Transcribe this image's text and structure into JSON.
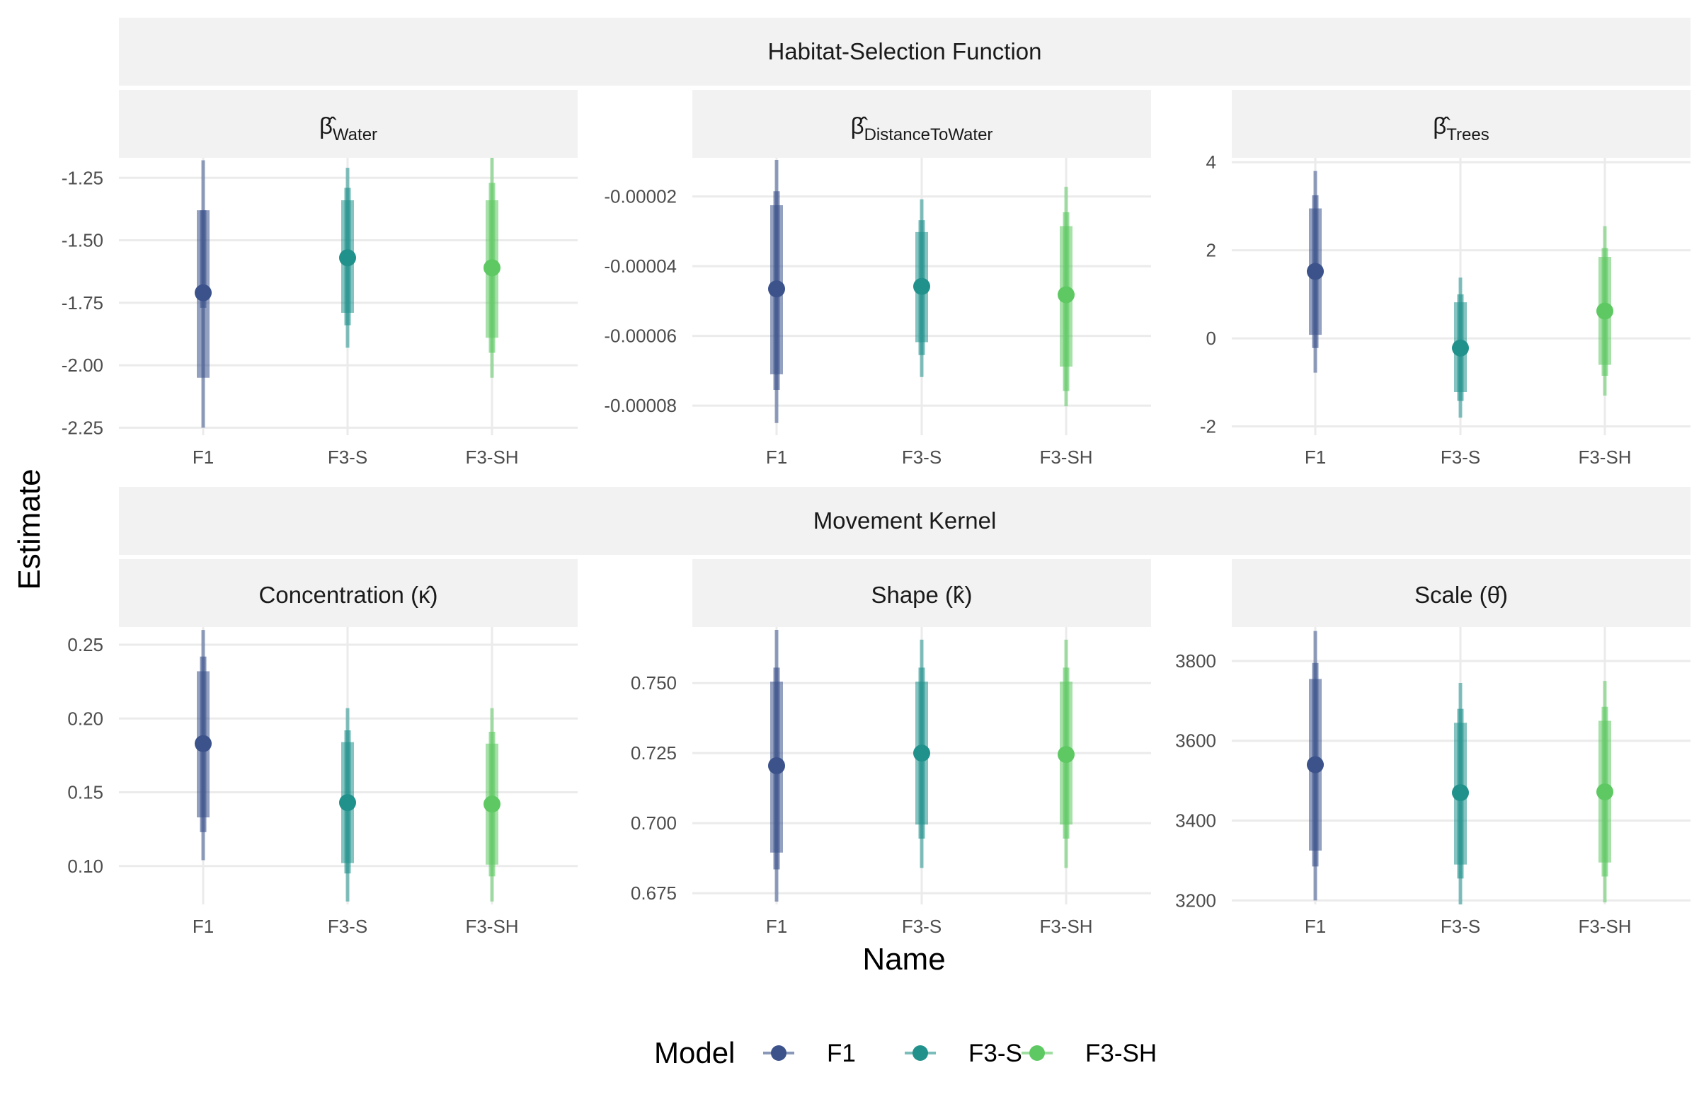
{
  "chart_data": {
    "type": "pointrange",
    "xlabel": "Name",
    "ylabel": "Estimate",
    "categories": [
      "F1",
      "F3-S",
      "F3-SH"
    ],
    "legend": {
      "title": "Model",
      "position": "bottom",
      "items": [
        {
          "name": "F1",
          "color": "#3b528b"
        },
        {
          "name": "F3-S",
          "color": "#21918c"
        },
        {
          "name": "F3-SH",
          "color": "#5ec962"
        }
      ]
    },
    "groups": [
      {
        "title": "Habitat-Selection Function",
        "panels": [
          {
            "title_base": "β̂",
            "title_sub": "Water",
            "ylim": [
              -2.28,
              -1.17
            ],
            "yticks": [
              -2.25,
              -2.0,
              -1.75,
              -1.5,
              -1.25
            ],
            "ytick_labels": [
              "-2.25",
              "-2.00",
              "-1.75",
              "-1.50",
              "-1.25"
            ],
            "series": [
              {
                "name": "F1",
                "estimate": -1.71,
                "inner": [
                  -1.77,
                  -1.38
                ],
                "mid": [
                  -2.05,
                  -1.38
                ],
                "outer": [
                  -2.25,
                  -1.18
                ]
              },
              {
                "name": "F3-S",
                "estimate": -1.57,
                "inner": [
                  -1.84,
                  -1.29
                ],
                "mid": [
                  -1.79,
                  -1.34
                ],
                "outer": [
                  -1.93,
                  -1.21
                ]
              },
              {
                "name": "F3-SH",
                "estimate": -1.61,
                "inner": [
                  -1.95,
                  -1.27
                ],
                "mid": [
                  -1.89,
                  -1.34
                ],
                "outer": [
                  -2.05,
                  -1.17
                ]
              }
            ]
          },
          {
            "title_base": "β̂",
            "title_sub": "DistanceToWater",
            "ylim": [
              -8.85e-05,
              -8.9e-06
            ],
            "yticks": [
              -8e-05,
              -6e-05,
              -4e-05,
              -2e-05
            ],
            "ytick_labels": [
              "-0.00008",
              "-0.00006",
              "-0.00004",
              "-0.00002"
            ],
            "series": [
              {
                "name": "F1",
                "estimate": -4.65e-05,
                "inner": [
                  -7.55e-05,
                  -1.85e-05
                ],
                "mid": [
                  -7.1e-05,
                  -2.25e-05
                ],
                "outer": [
                  -8.5e-05,
                  -9.5e-06
                ]
              },
              {
                "name": "F3-S",
                "estimate": -4.58e-05,
                "inner": [
                  -6.55e-05,
                  -2.68e-05
                ],
                "mid": [
                  -6.18e-05,
                  -3.02e-05
                ],
                "outer": [
                  -7.18e-05,
                  -2.08e-05
                ]
              },
              {
                "name": "F3-SH",
                "estimate": -4.82e-05,
                "inner": [
                  -7.58e-05,
                  -2.45e-05
                ],
                "mid": [
                  -6.88e-05,
                  -2.85e-05
                ],
                "outer": [
                  -8.02e-05,
                  -1.72e-05
                ]
              }
            ]
          },
          {
            "title_base": "β̂",
            "title_sub": "Trees",
            "ylim": [
              -2.2,
              4.1
            ],
            "yticks": [
              -2,
              0,
              2,
              4
            ],
            "ytick_labels": [
              "-2",
              "0",
              "2",
              "4"
            ],
            "series": [
              {
                "name": "F1",
                "estimate": 1.52,
                "inner": [
                  -0.22,
                  3.25
                ],
                "mid": [
                  0.08,
                  2.95
                ],
                "outer": [
                  -0.78,
                  3.8
                ]
              },
              {
                "name": "F3-S",
                "estimate": -0.22,
                "inner": [
                  -1.42,
                  1.0
                ],
                "mid": [
                  -1.22,
                  0.82
                ],
                "outer": [
                  -1.8,
                  1.38
                ]
              },
              {
                "name": "F3-SH",
                "estimate": 0.62,
                "inner": [
                  -0.85,
                  2.05
                ],
                "mid": [
                  -0.6,
                  1.85
                ],
                "outer": [
                  -1.3,
                  2.55
                ]
              }
            ]
          }
        ]
      },
      {
        "title": "Movement Kernel",
        "panels": [
          {
            "title_base": "Concentration (κ̂)",
            "title_sub": "",
            "ylim": [
              0.074,
              0.262
            ],
            "yticks": [
              0.1,
              0.15,
              0.2,
              0.25
            ],
            "ytick_labels": [
              "0.10",
              "0.15",
              "0.20",
              "0.25"
            ],
            "series": [
              {
                "name": "F1",
                "estimate": 0.183,
                "inner": [
                  0.123,
                  0.242
                ],
                "mid": [
                  0.133,
                  0.232
                ],
                "outer": [
                  0.104,
                  0.26
                ]
              },
              {
                "name": "F3-S",
                "estimate": 0.143,
                "inner": [
                  0.095,
                  0.192
                ],
                "mid": [
                  0.102,
                  0.184
                ],
                "outer": [
                  0.076,
                  0.207
                ]
              },
              {
                "name": "F3-SH",
                "estimate": 0.142,
                "inner": [
                  0.093,
                  0.191
                ],
                "mid": [
                  0.101,
                  0.183
                ],
                "outer": [
                  0.076,
                  0.207
                ]
              }
            ]
          },
          {
            "title_base": "Shape (k̂)",
            "title_sub": "",
            "ylim": [
              0.671,
              0.77
            ],
            "yticks": [
              0.675,
              0.7,
              0.725,
              0.75
            ],
            "ytick_labels": [
              "0.675",
              "0.700",
              "0.725",
              "0.750"
            ],
            "series": [
              {
                "name": "F1",
                "estimate": 0.7205,
                "inner": [
                  0.6835,
                  0.7555
                ],
                "mid": [
                  0.6895,
                  0.7505
                ],
                "outer": [
                  0.672,
                  0.769
                ]
              },
              {
                "name": "F3-S",
                "estimate": 0.725,
                "inner": [
                  0.6945,
                  0.7555
                ],
                "mid": [
                  0.6995,
                  0.7505
                ],
                "outer": [
                  0.684,
                  0.7655
                ]
              },
              {
                "name": "F3-SH",
                "estimate": 0.7245,
                "inner": [
                  0.6945,
                  0.7555
                ],
                "mid": [
                  0.6995,
                  0.7505
                ],
                "outer": [
                  0.684,
                  0.7655
                ]
              }
            ]
          },
          {
            "title_base": "Scale (θ̂)",
            "title_sub": "",
            "ylim": [
              3190,
              3885
            ],
            "yticks": [
              3200,
              3400,
              3600,
              3800
            ],
            "ytick_labels": [
              "3200",
              "3400",
              "3600",
              "3800"
            ],
            "series": [
              {
                "name": "F1",
                "estimate": 3540,
                "inner": [
                  3285,
                  3795
                ],
                "mid": [
                  3325,
                  3755
                ],
                "outer": [
                  3200,
                  3875
                ]
              },
              {
                "name": "F3-S",
                "estimate": 3470,
                "inner": [
                  3255,
                  3680
                ],
                "mid": [
                  3290,
                  3645
                ],
                "outer": [
                  3190,
                  3745
                ]
              },
              {
                "name": "F3-SH",
                "estimate": 3472,
                "inner": [
                  3260,
                  3685
                ],
                "mid": [
                  3295,
                  3650
                ],
                "outer": [
                  3195,
                  3750
                ]
              }
            ]
          }
        ]
      }
    ]
  }
}
